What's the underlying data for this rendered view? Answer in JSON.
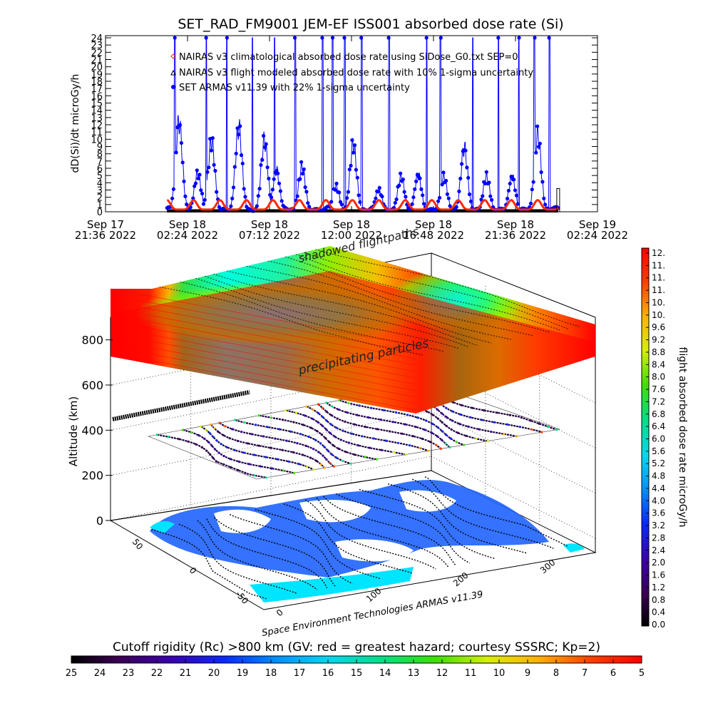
{
  "chart_data": [
    {
      "type": "line",
      "title": "SET_RAD_FM9001  JEM-EF ISS001 absorbed dose rate (Si)",
      "ylabel": "dD(Si)/dt microGy/h",
      "ylim": [
        0,
        24
      ],
      "y_ticks": [
        "0",
        "1",
        "2",
        "3",
        "4",
        "5",
        "6",
        "7",
        "8",
        "9",
        "10",
        "11",
        "12",
        "13",
        "14",
        "15",
        "16",
        "17",
        "18",
        "19",
        "20",
        "21",
        "22",
        "23",
        "24"
      ],
      "x_ticks": [
        {
          "top": "Sep 17",
          "bottom": "21:36 2022"
        },
        {
          "top": "Sep 18",
          "bottom": "02:24 2022"
        },
        {
          "top": "Sep 18",
          "bottom": "07:12 2022"
        },
        {
          "top": "Sep 18",
          "bottom": "12:00 2022"
        },
        {
          "top": "Sep 18",
          "bottom": "16:48 2022"
        },
        {
          "top": "Sep 18",
          "bottom": "21:36 2022"
        },
        {
          "top": "Sep 19",
          "bottom": "02:24 2022"
        }
      ],
      "x_range_hours": [
        0,
        28.8
      ],
      "data_span_hours": [
        3.6,
        26.5
      ],
      "series": [
        {
          "name": "NAIRAS v3 climatological absorbed dose rate using SiDose_G0.txt SEP=0",
          "marker": "diamond",
          "color": "#ff2a00",
          "baseline_value": 0.3,
          "peak_value": 1.6,
          "period_hours": 1.55
        },
        {
          "name": "NAIRAS v3 flight modeled absorbed dose rate with 10% 1-sigma uncertainty",
          "marker": "triangle",
          "color": "#000000",
          "baseline_value": 0.2
        },
        {
          "name": "SET ARMAS v11.39 with 22% 1-sigma uncertainty",
          "marker": "circle",
          "color": "#0000ff",
          "bumps": [
            {
              "t": 4.3,
              "peak": 14.0
            },
            {
              "t": 5.4,
              "peak": 6.0
            },
            {
              "t": 6.2,
              "peak": 11.0
            },
            {
              "t": 7.8,
              "peak": 13.2
            },
            {
              "t": 9.3,
              "peak": 11.2
            },
            {
              "t": 10.0,
              "peak": 6.5
            },
            {
              "t": 11.5,
              "peak": 7.0
            },
            {
              "t": 13.5,
              "peak": 4.0
            },
            {
              "t": 14.5,
              "peak": 10.5
            },
            {
              "t": 16.0,
              "peak": 3.5
            },
            {
              "t": 17.3,
              "peak": 5.5
            },
            {
              "t": 18.3,
              "peak": 5.8
            },
            {
              "t": 19.8,
              "peak": 5.5
            },
            {
              "t": 21.0,
              "peak": 10.0
            },
            {
              "t": 22.3,
              "peak": 5.5
            },
            {
              "t": 23.8,
              "peak": 5.5
            },
            {
              "t": 25.3,
              "peak": 12.0
            }
          ],
          "spikes": [
            4.05,
            5.9,
            7.1,
            8.6,
            9.9,
            11.1,
            12.7,
            13.3,
            14.0,
            15.0,
            16.6,
            18.8,
            19.6,
            21.5,
            23.0,
            24.2,
            25.1,
            26.0
          ]
        }
      ]
    },
    {
      "type": "heatmap",
      "title": "Cutoff rigidity (Rc) >800 km (GV: red = greatest hazard; courtesy SSSRC; Kp=2)",
      "zlabel": "Altitude (km)",
      "z_ticks": [
        "0",
        "200",
        "400",
        "600",
        "800"
      ],
      "zlim": [
        0,
        900
      ],
      "lat_ticks": [
        "50",
        "0",
        "-50"
      ],
      "lon_ticks": [
        "0",
        "100",
        "200",
        "300"
      ],
      "credit": "Space Environment Technologies ARMAS v11.39",
      "annotations": [
        "shadowed flightpaths",
        "precipitating particles"
      ],
      "colorbar_bottom": {
        "ticks": [
          "25",
          "24",
          "23",
          "22",
          "21",
          "20",
          "19",
          "18",
          "17",
          "16",
          "15",
          "14",
          "13",
          "12",
          "11",
          "10",
          "9",
          "8",
          "7",
          "6",
          "5"
        ]
      },
      "colorbar_right": {
        "label": "flight absorbed dose rate microGy/h",
        "ticks": [
          "0.0",
          "0.4",
          "0.8",
          "1.2",
          "1.6",
          "2.0",
          "2.4",
          "2.8",
          "3.2",
          "3.6",
          "4.0",
          "4.4",
          "4.8",
          "5.2",
          "5.6",
          "6.0",
          "6.4",
          "6.8",
          "7.2",
          "7.6",
          "8.0",
          "8.4",
          "8.8",
          "9.2",
          "9.6",
          "10.",
          "10.",
          "11.",
          "11.",
          "11.",
          "12."
        ]
      }
    }
  ]
}
